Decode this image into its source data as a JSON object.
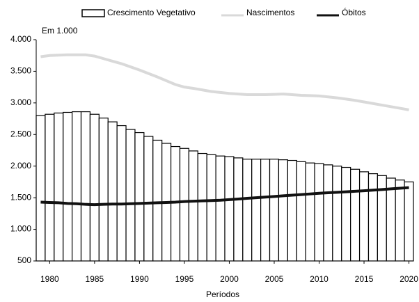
{
  "chart_data": {
    "type": "combo",
    "annotation": "Em 1.000",
    "xlabel": "Períodos",
    "x": [
      1979,
      1980,
      1981,
      1982,
      1983,
      1984,
      1985,
      1986,
      1987,
      1988,
      1989,
      1990,
      1991,
      1992,
      1993,
      1994,
      1995,
      1996,
      1997,
      1998,
      1999,
      2000,
      2001,
      2002,
      2003,
      2004,
      2005,
      2006,
      2007,
      2008,
      2009,
      2010,
      2011,
      2012,
      2013,
      2014,
      2015,
      2016,
      2017,
      2018,
      2019,
      2020
    ],
    "xlim": [
      1978.5,
      2020.5
    ],
    "xticks": [
      1980,
      1985,
      1990,
      1995,
      2000,
      2005,
      2010,
      2015,
      2020
    ],
    "ylim": [
      500,
      4000
    ],
    "yticks": [
      {
        "value": 500,
        "label": "500"
      },
      {
        "value": 1000,
        "label": "1.000"
      },
      {
        "value": 1500,
        "label": "1.500"
      },
      {
        "value": 2000,
        "label": "2.000"
      },
      {
        "value": 2500,
        "label": "2.500"
      },
      {
        "value": 3000,
        "label": "3.000"
      },
      {
        "value": 3500,
        "label": "3.500"
      },
      {
        "value": 4000,
        "label": "4.000"
      }
    ],
    "legend": "top",
    "series": [
      {
        "name": "Crescimento Vegetativo",
        "type": "bar",
        "color": "#ffffff",
        "edgecolor": "#000000",
        "values": [
          2800,
          2820,
          2840,
          2850,
          2860,
          2860,
          2820,
          2760,
          2700,
          2640,
          2580,
          2530,
          2470,
          2410,
          2360,
          2310,
          2280,
          2240,
          2200,
          2180,
          2160,
          2150,
          2130,
          2110,
          2110,
          2110,
          2110,
          2100,
          2090,
          2070,
          2050,
          2040,
          2020,
          2000,
          1980,
          1950,
          1910,
          1880,
          1850,
          1810,
          1780,
          1750
        ]
      },
      {
        "name": "Nascimentos",
        "type": "line",
        "color": "#d9d9d9",
        "values": [
          3730,
          3750,
          3755,
          3760,
          3760,
          3760,
          3740,
          3700,
          3660,
          3620,
          3570,
          3520,
          3465,
          3410,
          3350,
          3290,
          3250,
          3230,
          3205,
          3180,
          3165,
          3150,
          3140,
          3130,
          3130,
          3130,
          3135,
          3140,
          3130,
          3120,
          3115,
          3110,
          3095,
          3080,
          3060,
          3040,
          3015,
          2990,
          2965,
          2940,
          2915,
          2890
        ]
      },
      {
        "name": "Óbitos",
        "type": "line",
        "color": "#111111",
        "values": [
          1430,
          1425,
          1420,
          1410,
          1405,
          1395,
          1390,
          1395,
          1400,
          1400,
          1405,
          1410,
          1415,
          1420,
          1425,
          1430,
          1440,
          1445,
          1450,
          1455,
          1460,
          1470,
          1480,
          1490,
          1500,
          1510,
          1520,
          1530,
          1540,
          1550,
          1560,
          1570,
          1578,
          1586,
          1594,
          1602,
          1610,
          1620,
          1630,
          1640,
          1650,
          1660
        ]
      }
    ]
  }
}
